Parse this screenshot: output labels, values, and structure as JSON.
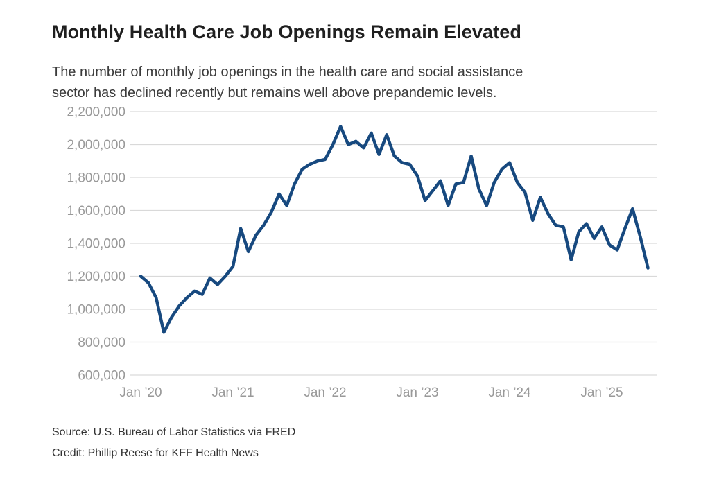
{
  "header": {
    "title": "Monthly Health Care Job Openings Remain Elevated",
    "subtitle": "The number of monthly job openings in the health care and social assistance\nsector has declined recently but remains well above prepandemic levels."
  },
  "footer": {
    "source": "Source: U.S. Bureau of Labor Statistics via FRED",
    "credit": "Credit: Phillip Reese for KFF Health News"
  },
  "chart_data": {
    "type": "line",
    "title": "Monthly Health Care Job Openings Remain Elevated",
    "xlabel": "",
    "ylabel": "",
    "x_start_month": "2020-01",
    "x_end_month": "2025-07",
    "x_tick_labels": [
      "Jan ’20",
      "Jan ’21",
      "Jan ’22",
      "Jan ’23",
      "Jan ’24",
      "Jan ’25"
    ],
    "y_ticks": [
      600000,
      800000,
      1000000,
      1200000,
      1400000,
      1600000,
      1800000,
      2000000,
      2200000
    ],
    "y_tick_labels": [
      "600,000",
      "800,000",
      "1,000,000",
      "1,200,000",
      "1,400,000",
      "1,600,000",
      "1,800,000",
      "2,000,000",
      "2,200,000"
    ],
    "ylim": [
      600000,
      2200000
    ],
    "grid": true,
    "legend": "none",
    "colors": {
      "line": "#17497f",
      "gridline": "#d9d9d9",
      "axis_label": "#999999"
    },
    "series": [
      {
        "name": "Job openings, health care and social assistance",
        "months_per_point": 1,
        "values": [
          1200000,
          1160000,
          1070000,
          860000,
          950000,
          1020000,
          1070000,
          1110000,
          1090000,
          1190000,
          1150000,
          1200000,
          1260000,
          1490000,
          1350000,
          1450000,
          1510000,
          1590000,
          1700000,
          1630000,
          1760000,
          1850000,
          1880000,
          1900000,
          1910000,
          2000000,
          2110000,
          2000000,
          2020000,
          1980000,
          2070000,
          1940000,
          2060000,
          1930000,
          1890000,
          1880000,
          1810000,
          1660000,
          1720000,
          1780000,
          1630000,
          1760000,
          1770000,
          1930000,
          1730000,
          1630000,
          1770000,
          1850000,
          1890000,
          1770000,
          1710000,
          1540000,
          1680000,
          1580000,
          1510000,
          1500000,
          1300000,
          1470000,
          1520000,
          1430000,
          1500000,
          1390000,
          1360000,
          1490000,
          1610000,
          1440000,
          1250000
        ]
      }
    ]
  }
}
